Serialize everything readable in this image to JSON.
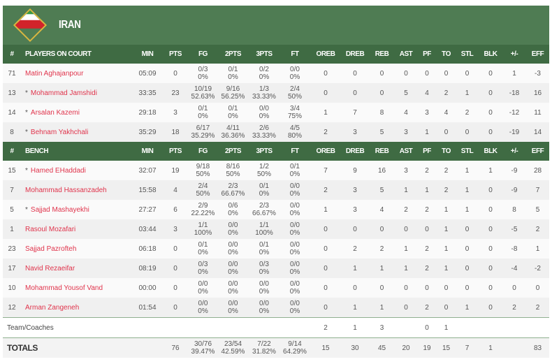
{
  "team": {
    "name": "IRAN",
    "flag_icon": "iran-flag-icon",
    "colors": {
      "header": "#4f7c53",
      "column_header": "#3f6b43",
      "player_link": "#e0344c"
    }
  },
  "columns": [
    "#",
    "MIN",
    "PTS",
    "FG",
    "2PTS",
    "3PTS",
    "FT",
    "OREB",
    "DREB",
    "REB",
    "AST",
    "PF",
    "TO",
    "STL",
    "BLK",
    "+/-",
    "EFF"
  ],
  "sections": [
    {
      "title": "PLAYERS ON COURT",
      "players": [
        {
          "no": "71",
          "starter": false,
          "name": "Matin Aghajanpour",
          "min": "05:09",
          "pts": "0",
          "fg": [
            "0/3",
            "0%"
          ],
          "p2": [
            "0/1",
            "0%"
          ],
          "p3": [
            "0/2",
            "0%"
          ],
          "ft": [
            "0/0",
            "0%"
          ],
          "oreb": "0",
          "dreb": "0",
          "reb": "0",
          "ast": "0",
          "pf": "0",
          "to": "0",
          "stl": "0",
          "blk": "0",
          "pm": "1",
          "eff": "-3"
        },
        {
          "no": "13",
          "starter": true,
          "name": "Mohammad Jamshidi",
          "min": "33:35",
          "pts": "23",
          "fg": [
            "10/19",
            "52.63%"
          ],
          "p2": [
            "9/16",
            "56.25%"
          ],
          "p3": [
            "1/3",
            "33.33%"
          ],
          "ft": [
            "2/4",
            "50%"
          ],
          "oreb": "0",
          "dreb": "0",
          "reb": "0",
          "ast": "5",
          "pf": "4",
          "to": "2",
          "stl": "1",
          "blk": "0",
          "pm": "-18",
          "eff": "16"
        },
        {
          "no": "14",
          "starter": true,
          "name": "Arsalan Kazemi",
          "min": "29:18",
          "pts": "3",
          "fg": [
            "0/1",
            "0%"
          ],
          "p2": [
            "0/1",
            "0%"
          ],
          "p3": [
            "0/0",
            "0%"
          ],
          "ft": [
            "3/4",
            "75%"
          ],
          "oreb": "1",
          "dreb": "7",
          "reb": "8",
          "ast": "4",
          "pf": "3",
          "to": "4",
          "stl": "2",
          "blk": "0",
          "pm": "-12",
          "eff": "11"
        },
        {
          "no": "8",
          "starter": true,
          "name": "Behnam Yakhchali",
          "min": "35:29",
          "pts": "18",
          "fg": [
            "6/17",
            "35.29%"
          ],
          "p2": [
            "4/11",
            "36.36%"
          ],
          "p3": [
            "2/6",
            "33.33%"
          ],
          "ft": [
            "4/5",
            "80%"
          ],
          "oreb": "2",
          "dreb": "3",
          "reb": "5",
          "ast": "3",
          "pf": "1",
          "to": "0",
          "stl": "0",
          "blk": "0",
          "pm": "-19",
          "eff": "14"
        }
      ]
    },
    {
      "title": "BENCH",
      "players": [
        {
          "no": "15",
          "starter": true,
          "name": "Hamed EHaddadi",
          "min": "32:07",
          "pts": "19",
          "fg": [
            "9/18",
            "50%"
          ],
          "p2": [
            "8/16",
            "50%"
          ],
          "p3": [
            "1/2",
            "50%"
          ],
          "ft": [
            "0/1",
            "0%"
          ],
          "oreb": "7",
          "dreb": "9",
          "reb": "16",
          "ast": "3",
          "pf": "2",
          "to": "2",
          "stl": "1",
          "blk": "1",
          "pm": "-9",
          "eff": "28"
        },
        {
          "no": "7",
          "starter": false,
          "name": "Mohammad Hassanzadeh",
          "min": "15:58",
          "pts": "4",
          "fg": [
            "2/4",
            "50%"
          ],
          "p2": [
            "2/3",
            "66.67%"
          ],
          "p3": [
            "0/1",
            "0%"
          ],
          "ft": [
            "0/0",
            "0%"
          ],
          "oreb": "2",
          "dreb": "3",
          "reb": "5",
          "ast": "1",
          "pf": "1",
          "to": "2",
          "stl": "1",
          "blk": "0",
          "pm": "-9",
          "eff": "7"
        },
        {
          "no": "5",
          "starter": true,
          "name": "Sajjad Mashayekhi",
          "min": "27:27",
          "pts": "6",
          "fg": [
            "2/9",
            "22.22%"
          ],
          "p2": [
            "0/6",
            "0%"
          ],
          "p3": [
            "2/3",
            "66.67%"
          ],
          "ft": [
            "0/0",
            "0%"
          ],
          "oreb": "1",
          "dreb": "3",
          "reb": "4",
          "ast": "2",
          "pf": "2",
          "to": "1",
          "stl": "1",
          "blk": "0",
          "pm": "8",
          "eff": "5"
        },
        {
          "no": "1",
          "starter": false,
          "name": "Rasoul Mozafari",
          "min": "03:44",
          "pts": "3",
          "fg": [
            "1/1",
            "100%"
          ],
          "p2": [
            "0/0",
            "0%"
          ],
          "p3": [
            "1/1",
            "100%"
          ],
          "ft": [
            "0/0",
            "0%"
          ],
          "oreb": "0",
          "dreb": "0",
          "reb": "0",
          "ast": "0",
          "pf": "0",
          "to": "1",
          "stl": "0",
          "blk": "0",
          "pm": "-5",
          "eff": "2"
        },
        {
          "no": "23",
          "starter": false,
          "name": "Sajjad Pazrofteh",
          "min": "06:18",
          "pts": "0",
          "fg": [
            "0/1",
            "0%"
          ],
          "p2": [
            "0/0",
            "0%"
          ],
          "p3": [
            "0/1",
            "0%"
          ],
          "ft": [
            "0/0",
            "0%"
          ],
          "oreb": "0",
          "dreb": "2",
          "reb": "2",
          "ast": "1",
          "pf": "2",
          "to": "1",
          "stl": "0",
          "blk": "0",
          "pm": "-8",
          "eff": "1"
        },
        {
          "no": "17",
          "starter": false,
          "name": "Navid Rezaeifar",
          "min": "08:19",
          "pts": "0",
          "fg": [
            "0/3",
            "0%"
          ],
          "p2": [
            "0/0",
            "0%"
          ],
          "p3": [
            "0/3",
            "0%"
          ],
          "ft": [
            "0/0",
            "0%"
          ],
          "oreb": "0",
          "dreb": "1",
          "reb": "1",
          "ast": "1",
          "pf": "2",
          "to": "1",
          "stl": "0",
          "blk": "0",
          "pm": "-4",
          "eff": "-2"
        },
        {
          "no": "10",
          "starter": false,
          "name": "Mohammad Yousof Vand",
          "min": "00:00",
          "pts": "0",
          "fg": [
            "0/0",
            "0%"
          ],
          "p2": [
            "0/0",
            "0%"
          ],
          "p3": [
            "0/0",
            "0%"
          ],
          "ft": [
            "0/0",
            "0%"
          ],
          "oreb": "0",
          "dreb": "0",
          "reb": "0",
          "ast": "0",
          "pf": "0",
          "to": "0",
          "stl": "0",
          "blk": "0",
          "pm": "0",
          "eff": "0"
        },
        {
          "no": "12",
          "starter": false,
          "name": "Arman Zangeneh",
          "min": "01:54",
          "pts": "0",
          "fg": [
            "0/0",
            "0%"
          ],
          "p2": [
            "0/0",
            "0%"
          ],
          "p3": [
            "0/0",
            "0%"
          ],
          "ft": [
            "0/0",
            "0%"
          ],
          "oreb": "0",
          "dreb": "1",
          "reb": "1",
          "ast": "0",
          "pf": "2",
          "to": "0",
          "stl": "1",
          "blk": "0",
          "pm": "2",
          "eff": "2"
        }
      ]
    }
  ],
  "team_coaches": {
    "label": "Team/Coaches",
    "oreb": "2",
    "dreb": "1",
    "reb": "3",
    "ast": "",
    "pf": "0",
    "to": "1",
    "stl": "",
    "blk": "",
    "pm": "",
    "eff": ""
  },
  "totals": {
    "label": "TOTALS",
    "min": "",
    "pts": "76",
    "fg": [
      "30/76",
      "39.47%"
    ],
    "p2": [
      "23/54",
      "42.59%"
    ],
    "p3": [
      "7/22",
      "31.82%"
    ],
    "ft": [
      "9/14",
      "64.29%"
    ],
    "oreb": "15",
    "dreb": "30",
    "reb": "45",
    "ast": "20",
    "pf": "19",
    "to": "15",
    "stl": "7",
    "blk": "1",
    "pm": "",
    "eff": "83"
  }
}
